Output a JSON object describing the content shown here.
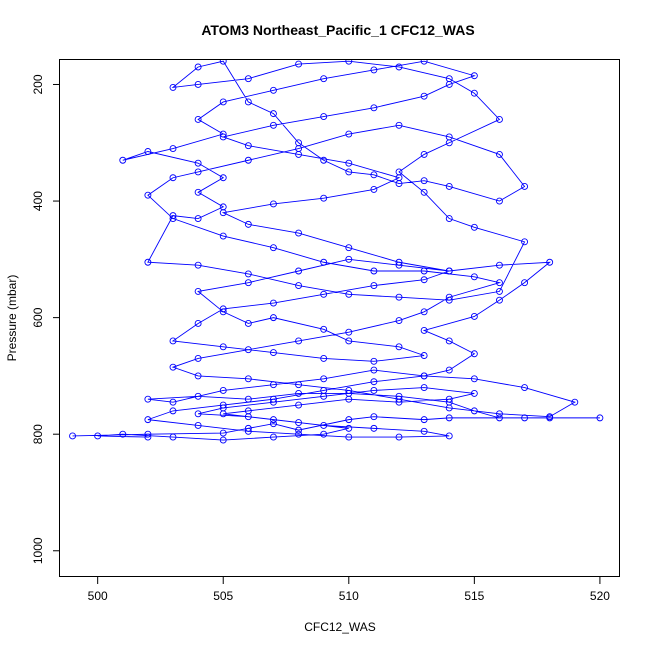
{
  "chart_data": {
    "type": "line",
    "title": "ATOM3 Northeast_Pacific_1 CFC12_WAS",
    "xlabel": "CFC12_WAS",
    "ylabel": "Pressure (mbar)",
    "xlim": [
      498.5,
      520.8
    ],
    "ylim": [
      1045,
      158
    ],
    "y_reversed": true,
    "grid": false,
    "series_color": "#0000ff",
    "marker": "open-circle",
    "xticks": [
      500,
      505,
      510,
      515,
      520
    ],
    "yticks": [
      200,
      400,
      600,
      800,
      1000
    ],
    "x_tick_labels": [
      "500",
      "505",
      "510",
      "515",
      "520"
    ],
    "y_tick_labels": [
      "200",
      "400",
      "600",
      "800",
      "1000"
    ],
    "series": [
      {
        "points": [
          [
            499,
            803
          ],
          [
            502,
            800
          ],
          [
            505,
            798
          ],
          [
            506,
            790
          ],
          [
            507,
            782
          ],
          [
            508,
            793
          ],
          [
            510,
            775
          ],
          [
            511,
            770
          ],
          [
            513,
            775
          ],
          [
            514,
            772
          ],
          [
            517,
            772
          ],
          [
            520,
            772
          ],
          [
            518,
            772
          ],
          [
            516,
            772
          ],
          [
            515,
            760
          ],
          [
            514,
            745
          ],
          [
            512,
            735
          ],
          [
            510,
            730
          ],
          [
            508,
            730
          ],
          [
            506,
            740
          ],
          [
            504,
            735
          ],
          [
            502,
            740
          ],
          [
            503,
            745
          ],
          [
            505,
            725
          ],
          [
            507,
            715
          ],
          [
            509,
            705
          ],
          [
            511,
            690
          ],
          [
            513,
            700
          ],
          [
            514,
            690
          ],
          [
            515,
            662
          ],
          [
            514,
            640
          ],
          [
            513,
            622
          ],
          [
            515,
            598
          ],
          [
            516,
            570
          ],
          [
            517,
            540
          ],
          [
            518,
            505
          ],
          [
            516,
            510
          ],
          [
            514,
            520
          ],
          [
            512,
            510
          ],
          [
            510,
            500
          ],
          [
            508,
            520
          ],
          [
            506,
            540
          ],
          [
            504,
            555
          ],
          [
            505,
            590
          ],
          [
            506,
            610
          ],
          [
            507,
            600
          ],
          [
            509,
            620
          ],
          [
            510,
            640
          ],
          [
            512,
            650
          ],
          [
            513,
            665
          ],
          [
            511,
            675
          ],
          [
            509,
            670
          ],
          [
            507,
            660
          ],
          [
            505,
            650
          ],
          [
            503,
            640
          ],
          [
            504,
            610
          ],
          [
            505,
            585
          ],
          [
            507,
            575
          ],
          [
            509,
            560
          ],
          [
            511,
            545
          ],
          [
            513,
            535
          ],
          [
            514,
            520
          ],
          [
            512,
            505
          ],
          [
            510,
            480
          ],
          [
            508,
            455
          ],
          [
            506,
            440
          ],
          [
            505,
            420
          ],
          [
            507,
            405
          ],
          [
            509,
            395
          ],
          [
            511,
            380
          ],
          [
            512,
            360
          ],
          [
            510,
            335
          ],
          [
            508,
            320
          ],
          [
            506,
            305
          ],
          [
            505,
            290
          ],
          [
            507,
            270
          ],
          [
            509,
            255
          ],
          [
            511,
            240
          ],
          [
            513,
            220
          ],
          [
            514,
            200
          ],
          [
            515,
            185
          ],
          [
            513,
            160
          ],
          [
            511,
            175
          ],
          [
            509,
            190
          ],
          [
            507,
            210
          ],
          [
            505,
            230
          ],
          [
            504,
            260
          ],
          [
            505,
            285
          ],
          [
            503,
            310
          ],
          [
            501,
            330
          ],
          [
            502,
            315
          ],
          [
            504,
            335
          ],
          [
            505,
            360
          ],
          [
            504,
            385
          ],
          [
            505,
            410
          ],
          [
            504,
            430
          ],
          [
            503,
            425
          ],
          [
            502,
            505
          ],
          [
            504,
            510
          ],
          [
            506,
            525
          ],
          [
            508,
            545
          ],
          [
            510,
            560
          ],
          [
            512,
            565
          ],
          [
            514,
            570
          ],
          [
            516,
            555
          ],
          [
            517,
            470
          ],
          [
            515,
            445
          ],
          [
            514,
            430
          ],
          [
            513,
            385
          ],
          [
            512,
            350
          ],
          [
            513,
            320
          ],
          [
            514,
            300
          ],
          [
            516,
            260
          ],
          [
            515,
            215
          ],
          [
            514,
            190
          ],
          [
            512,
            170
          ],
          [
            510,
            160
          ],
          [
            508,
            165
          ],
          [
            506,
            190
          ],
          [
            504,
            200
          ],
          [
            503,
            205
          ],
          [
            504,
            170
          ],
          [
            505,
            160
          ],
          [
            506,
            230
          ],
          [
            507,
            250
          ],
          [
            508,
            300
          ],
          [
            509,
            330
          ],
          [
            510,
            350
          ],
          [
            511,
            355
          ],
          [
            512,
            370
          ],
          [
            513,
            365
          ],
          [
            514,
            375
          ],
          [
            516,
            400
          ],
          [
            517,
            375
          ],
          [
            516,
            320
          ],
          [
            514,
            290
          ],
          [
            512,
            270
          ],
          [
            510,
            285
          ],
          [
            508,
            310
          ],
          [
            506,
            330
          ],
          [
            504,
            350
          ],
          [
            503,
            360
          ],
          [
            502,
            390
          ],
          [
            503,
            430
          ],
          [
            505,
            460
          ],
          [
            507,
            480
          ],
          [
            509,
            505
          ],
          [
            511,
            520
          ],
          [
            513,
            520
          ],
          [
            515,
            530
          ],
          [
            516,
            540
          ],
          [
            514,
            565
          ],
          [
            513,
            590
          ],
          [
            512,
            605
          ],
          [
            510,
            625
          ],
          [
            508,
            640
          ],
          [
            506,
            655
          ],
          [
            504,
            670
          ],
          [
            503,
            685
          ],
          [
            504,
            700
          ],
          [
            506,
            705
          ],
          [
            508,
            715
          ],
          [
            510,
            725
          ],
          [
            512,
            740
          ],
          [
            514,
            755
          ],
          [
            516,
            765
          ],
          [
            518,
            770
          ],
          [
            519,
            745
          ],
          [
            517,
            720
          ],
          [
            515,
            705
          ],
          [
            513,
            700
          ],
          [
            511,
            710
          ],
          [
            509,
            725
          ],
          [
            507,
            740
          ],
          [
            505,
            750
          ],
          [
            503,
            760
          ],
          [
            502,
            775
          ],
          [
            504,
            785
          ],
          [
            506,
            795
          ],
          [
            508,
            800
          ],
          [
            510,
            805
          ],
          [
            512,
            805
          ],
          [
            514,
            803
          ],
          [
            513,
            795
          ],
          [
            511,
            790
          ],
          [
            509,
            785
          ],
          [
            507,
            775
          ],
          [
            505,
            765
          ],
          [
            506,
            760
          ],
          [
            508,
            750
          ],
          [
            510,
            740
          ],
          [
            512,
            745
          ],
          [
            514,
            740
          ],
          [
            515,
            730
          ],
          [
            513,
            720
          ],
          [
            511,
            725
          ],
          [
            509,
            735
          ],
          [
            507,
            745
          ],
          [
            505,
            755
          ],
          [
            504,
            765
          ],
          [
            506,
            770
          ],
          [
            508,
            780
          ],
          [
            510,
            790
          ],
          [
            509,
            800
          ],
          [
            507,
            805
          ],
          [
            505,
            810
          ],
          [
            503,
            805
          ],
          [
            501,
            800
          ],
          [
            500,
            803
          ],
          [
            502,
            805
          ]
        ]
      }
    ]
  }
}
